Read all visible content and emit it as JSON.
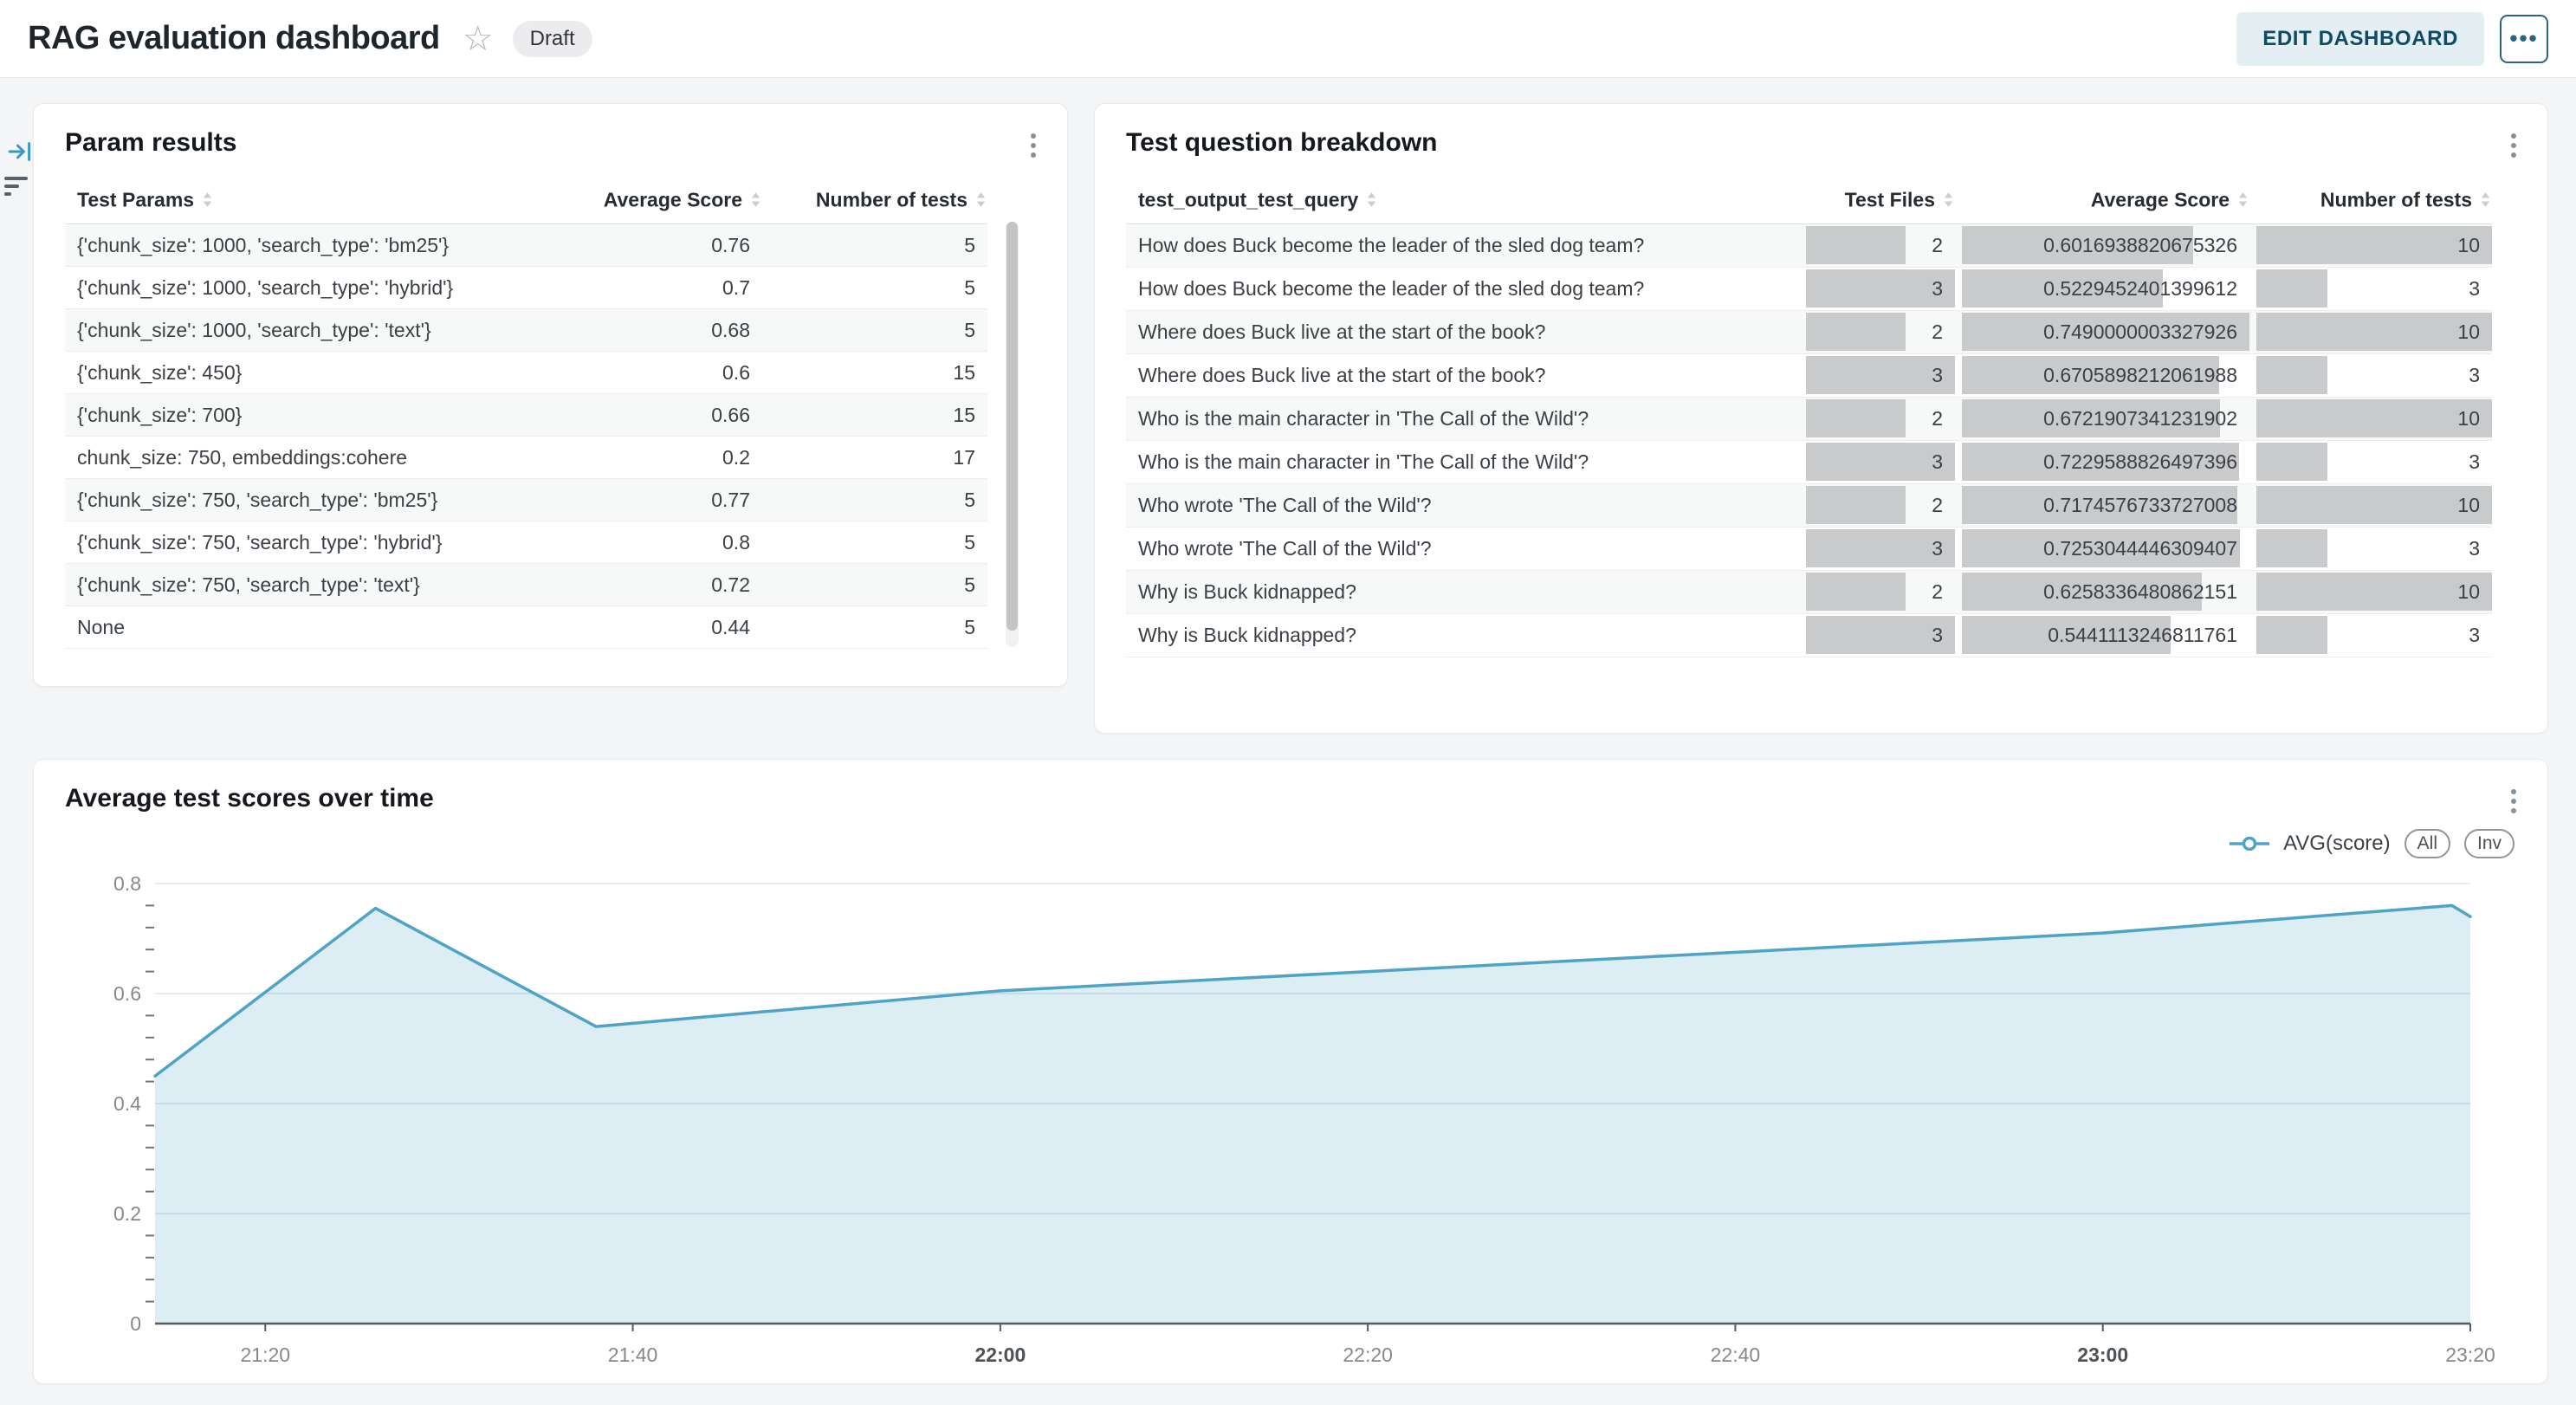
{
  "header": {
    "title": "RAG evaluation dashboard",
    "status_badge": "Draft",
    "edit_button": "EDIT DASHBOARD",
    "more_button": "•••",
    "accent_color": "#0f4c63"
  },
  "param_results": {
    "title": "Param results",
    "columns": [
      "Test Params",
      "Average Score",
      "Number of tests"
    ],
    "rows": [
      [
        "{'chunk_size': 1000, 'search_type': 'bm25'}",
        "0.76",
        "5"
      ],
      [
        "{'chunk_size': 1000, 'search_type': 'hybrid'}",
        "0.7",
        "5"
      ],
      [
        "{'chunk_size': 1000, 'search_type': 'text'}",
        "0.68",
        "5"
      ],
      [
        "{'chunk_size': 450}",
        "0.6",
        "15"
      ],
      [
        "{'chunk_size': 700}",
        "0.66",
        "15"
      ],
      [
        "chunk_size: 750, embeddings:cohere",
        "0.2",
        "17"
      ],
      [
        "{'chunk_size': 750, 'search_type': 'bm25'}",
        "0.77",
        "5"
      ],
      [
        "{'chunk_size': 750, 'search_type': 'hybrid'}",
        "0.8",
        "5"
      ],
      [
        "{'chunk_size': 750, 'search_type': 'text'}",
        "0.72",
        "5"
      ],
      [
        "None",
        "0.44",
        "5"
      ]
    ]
  },
  "question_breakdown": {
    "title": "Test question breakdown",
    "columns": [
      "test_output_test_query",
      "Test Files",
      "Average Score",
      "Number of tests"
    ],
    "bar_color": "#c9cacb",
    "rows": [
      {
        "query": "How does Buck become the leader of the sled dog team?",
        "files": 2,
        "score": "0.6016938820675326",
        "tests": 10
      },
      {
        "query": "How does Buck become the leader of the sled dog team?",
        "files": 3,
        "score": "0.5229452401399612",
        "tests": 3
      },
      {
        "query": "Where does Buck live at the start of the book?",
        "files": 2,
        "score": "0.7490000003327926",
        "tests": 10
      },
      {
        "query": "Where does Buck live at the start of the book?",
        "files": 3,
        "score": "0.6705898212061988",
        "tests": 3
      },
      {
        "query": "Who is the main character in 'The Call of the Wild'?",
        "files": 2,
        "score": "0.6721907341231902",
        "tests": 10
      },
      {
        "query": "Who is the main character in 'The Call of the Wild'?",
        "files": 3,
        "score": "0.7229588826497396",
        "tests": 3
      },
      {
        "query": "Who wrote 'The Call of the Wild'?",
        "files": 2,
        "score": "0.7174576733727008",
        "tests": 10
      },
      {
        "query": "Who wrote 'The Call of the Wild'?",
        "files": 3,
        "score": "0.7253044446309407",
        "tests": 3
      },
      {
        "query": "Why is Buck kidnapped?",
        "files": 2,
        "score": "0.6258336480862151",
        "tests": 10
      },
      {
        "query": "Why is Buck kidnapped?",
        "files": 3,
        "score": "0.5441113246811761",
        "tests": 3
      }
    ]
  },
  "chart_data": {
    "type": "area",
    "title": "Average test scores over time",
    "legend": {
      "series_label": "AVG(score)",
      "buttons": [
        "All",
        "Inv"
      ]
    },
    "series": [
      {
        "name": "AVG(score)",
        "points": [
          [
            "21:14",
            0.45
          ],
          [
            "21:26",
            0.755
          ],
          [
            "21:38",
            0.54
          ],
          [
            "22:00",
            0.605
          ],
          [
            "22:20",
            0.64
          ],
          [
            "22:40",
            0.675
          ],
          [
            "23:00",
            0.71
          ],
          [
            "23:19",
            0.76
          ],
          [
            "23:20",
            0.74
          ]
        ]
      }
    ],
    "x_ticks": [
      "21:20",
      "21:40",
      "22:00",
      "22:20",
      "22:40",
      "23:00",
      "23:20"
    ],
    "bold_x_ticks": [
      "22:00",
      "23:00"
    ],
    "y_ticks": [
      "0",
      "0.2",
      "0.4",
      "0.6",
      "0.8"
    ],
    "ylim": [
      0,
      0.8
    ],
    "y_minor_step": 0.04,
    "grid": true,
    "legend_position": "top-right",
    "line_color": "#4fa3c6",
    "fill_color": "rgba(79,163,198,0.2)",
    "grid_color": "#e4ecf2",
    "axis_color": "#565b5f",
    "tick_label_color": "#85898d",
    "bold_tick_label_color": "#4d5256"
  }
}
